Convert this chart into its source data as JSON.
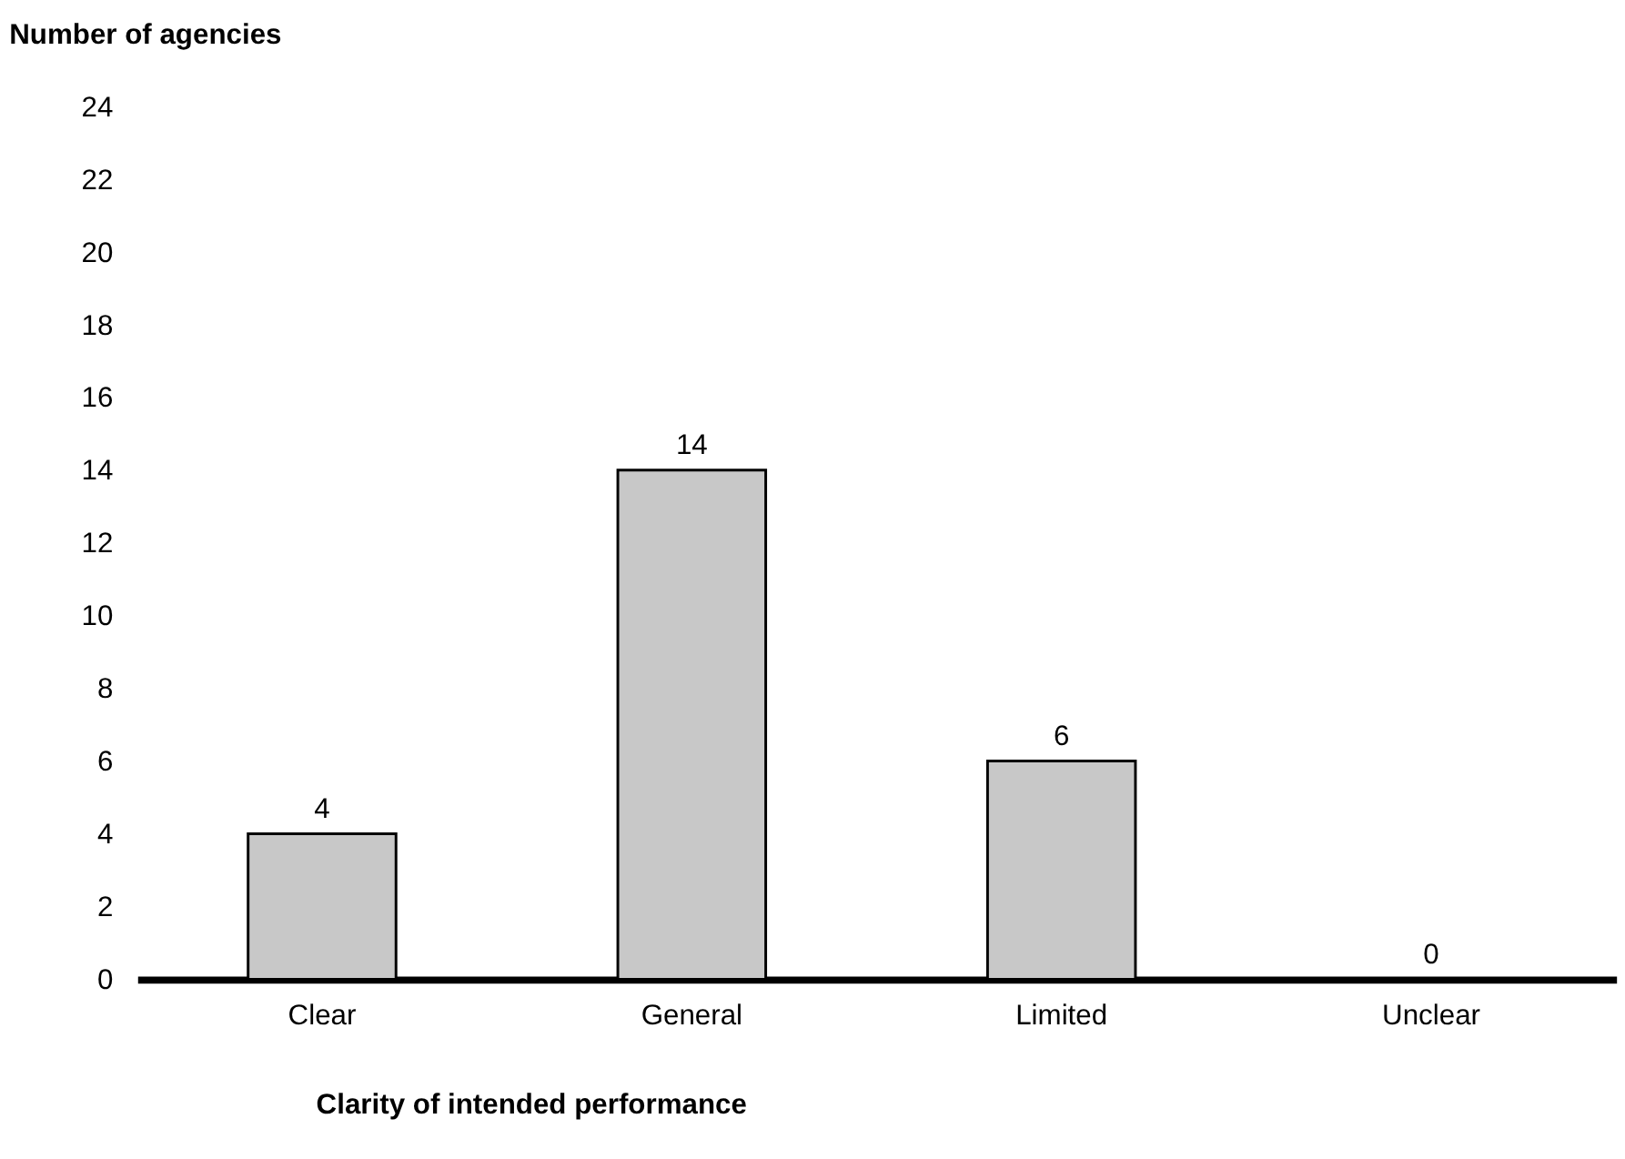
{
  "chart_data": {
    "type": "bar",
    "ylabel": "Number of agencies",
    "xlabel": "Clarity of intended performance",
    "categories": [
      "Clear",
      "General",
      "Limited",
      "Unclear"
    ],
    "values": [
      4,
      14,
      6,
      0
    ],
    "color": "#c8c8c8",
    "ylim": [
      0,
      24
    ],
    "yticks": [
      0,
      2,
      4,
      6,
      8,
      10,
      12,
      14,
      16,
      18,
      20,
      22,
      24
    ],
    "data_labels": true
  }
}
